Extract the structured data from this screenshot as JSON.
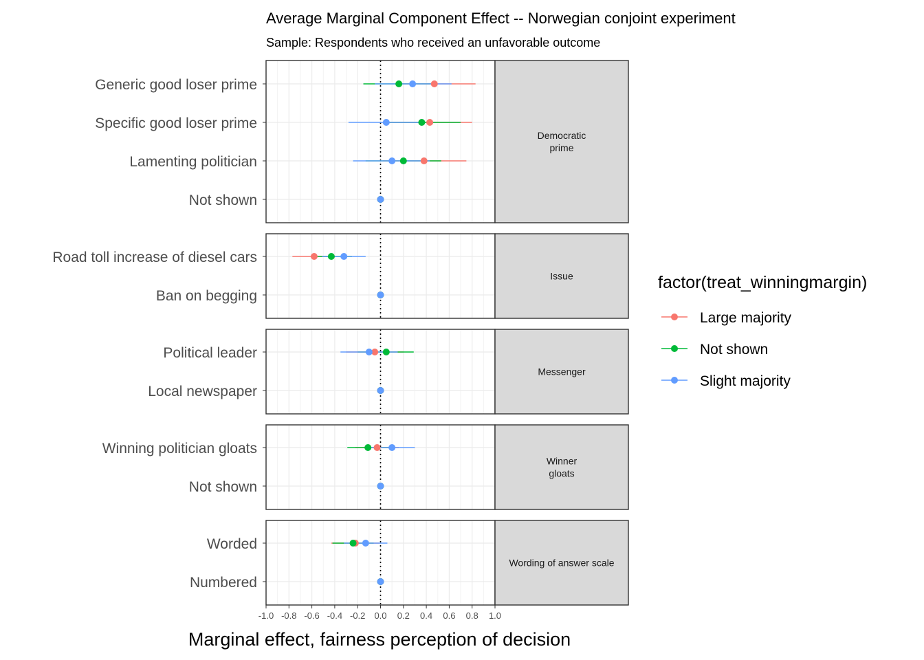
{
  "chart_data": {
    "type": "scatter",
    "title": "Average Marginal Component Effect -- Norwegian conjoint experiment",
    "subtitle": "Sample: Respondents who received an unfavorable outcome",
    "xlabel": "Marginal effect, fairness perception of decision",
    "xlim": [
      -1.0,
      1.0
    ],
    "xticks": [
      "-1.0",
      "-0.8",
      "-0.6",
      "-0.4",
      "-0.2",
      "0.0",
      "0.2",
      "0.4",
      "0.6",
      "0.8",
      "1.0"
    ],
    "reference_line": 0,
    "grid": true,
    "legend": {
      "title": "factor(treat_winningmargin)",
      "position": "right",
      "entries": [
        {
          "label": "Large majority",
          "color": "#F8766D"
        },
        {
          "label": "Not shown",
          "color": "#00BA38"
        },
        {
          "label": "Slight majority",
          "color": "#619CFF"
        }
      ]
    },
    "panels": [
      {
        "strip": [
          "Democratic",
          "prime"
        ],
        "rows": [
          {
            "label": "Generic good loser prime",
            "points": [
              {
                "series": "Large majority",
                "estimate": 0.47,
                "lower": 0.14,
                "upper": 0.83
              },
              {
                "series": "Not shown",
                "estimate": 0.16,
                "lower": -0.15,
                "upper": 0.49
              },
              {
                "series": "Slight majority",
                "estimate": 0.28,
                "lower": -0.05,
                "upper": 0.62
              }
            ]
          },
          {
            "label": "Specific good loser prime",
            "points": [
              {
                "series": "Large majority",
                "estimate": 0.43,
                "lower": 0.07,
                "upper": 0.8
              },
              {
                "series": "Not shown",
                "estimate": 0.36,
                "lower": 0.03,
                "upper": 0.7
              },
              {
                "series": "Slight majority",
                "estimate": 0.05,
                "lower": -0.28,
                "upper": 0.38
              }
            ]
          },
          {
            "label": "Lamenting politician",
            "points": [
              {
                "series": "Large majority",
                "estimate": 0.38,
                "lower": 0.02,
                "upper": 0.75
              },
              {
                "series": "Not shown",
                "estimate": 0.2,
                "lower": -0.13,
                "upper": 0.53
              },
              {
                "series": "Slight majority",
                "estimate": 0.1,
                "lower": -0.24,
                "upper": 0.43
              }
            ]
          },
          {
            "label": "Not shown",
            "points": [
              {
                "series": "Large majority",
                "estimate": 0.0,
                "lower": 0.0,
                "upper": 0.0
              },
              {
                "series": "Not shown",
                "estimate": 0.0,
                "lower": 0.0,
                "upper": 0.0
              },
              {
                "series": "Slight majority",
                "estimate": 0.0,
                "lower": 0.0,
                "upper": 0.0
              }
            ]
          }
        ]
      },
      {
        "strip": [
          "Issue"
        ],
        "rows": [
          {
            "label": "Road toll increase of diesel cars",
            "points": [
              {
                "series": "Large majority",
                "estimate": -0.58,
                "lower": -0.77,
                "upper": -0.4
              },
              {
                "series": "Not shown",
                "estimate": -0.43,
                "lower": -0.61,
                "upper": -0.25
              },
              {
                "series": "Slight majority",
                "estimate": -0.32,
                "lower": -0.51,
                "upper": -0.13
              }
            ]
          },
          {
            "label": "Ban on begging",
            "points": [
              {
                "series": "Large majority",
                "estimate": 0.0,
                "lower": 0.0,
                "upper": 0.0
              },
              {
                "series": "Not shown",
                "estimate": 0.0,
                "lower": 0.0,
                "upper": 0.0
              },
              {
                "series": "Slight majority",
                "estimate": 0.0,
                "lower": 0.0,
                "upper": 0.0
              }
            ]
          }
        ]
      },
      {
        "strip": [
          "Messenger"
        ],
        "rows": [
          {
            "label": "Political leader",
            "points": [
              {
                "series": "Large majority",
                "estimate": -0.05,
                "lower": -0.3,
                "upper": 0.2
              },
              {
                "series": "Not shown",
                "estimate": 0.05,
                "lower": -0.2,
                "upper": 0.29
              },
              {
                "series": "Slight majority",
                "estimate": -0.1,
                "lower": -0.35,
                "upper": 0.15
              }
            ]
          },
          {
            "label": "Local newspaper",
            "points": [
              {
                "series": "Large majority",
                "estimate": 0.0,
                "lower": 0.0,
                "upper": 0.0
              },
              {
                "series": "Not shown",
                "estimate": 0.0,
                "lower": 0.0,
                "upper": 0.0
              },
              {
                "series": "Slight majority",
                "estimate": 0.0,
                "lower": 0.0,
                "upper": 0.0
              }
            ]
          }
        ]
      },
      {
        "strip": [
          "Winner",
          "gloats"
        ],
        "rows": [
          {
            "label": "Winning politician gloats",
            "points": [
              {
                "series": "Large majority",
                "estimate": -0.03,
                "lower": -0.22,
                "upper": 0.16
              },
              {
                "series": "Not shown",
                "estimate": -0.11,
                "lower": -0.29,
                "upper": 0.08
              },
              {
                "series": "Slight majority",
                "estimate": 0.1,
                "lower": -0.09,
                "upper": 0.3
              }
            ]
          },
          {
            "label": "Not shown",
            "points": [
              {
                "series": "Large majority",
                "estimate": 0.0,
                "lower": 0.0,
                "upper": 0.0
              },
              {
                "series": "Not shown",
                "estimate": 0.0,
                "lower": 0.0,
                "upper": 0.0
              },
              {
                "series": "Slight majority",
                "estimate": 0.0,
                "lower": 0.0,
                "upper": 0.0
              }
            ]
          }
        ]
      },
      {
        "strip": [
          "Wording of answer scale"
        ],
        "rows": [
          {
            "label": "Worded",
            "points": [
              {
                "series": "Large majority",
                "estimate": -0.22,
                "lower": -0.43,
                "upper": -0.01
              },
              {
                "series": "Not shown",
                "estimate": -0.24,
                "lower": -0.42,
                "upper": -0.06
              },
              {
                "series": "Slight majority",
                "estimate": -0.13,
                "lower": -0.32,
                "upper": 0.06
              }
            ]
          },
          {
            "label": "Numbered",
            "points": [
              {
                "series": "Large majority",
                "estimate": 0.0,
                "lower": 0.0,
                "upper": 0.0
              },
              {
                "series": "Not shown",
                "estimate": 0.0,
                "lower": 0.0,
                "upper": 0.0
              },
              {
                "series": "Slight majority",
                "estimate": 0.0,
                "lower": 0.0,
                "upper": 0.0
              }
            ]
          }
        ]
      }
    ]
  }
}
